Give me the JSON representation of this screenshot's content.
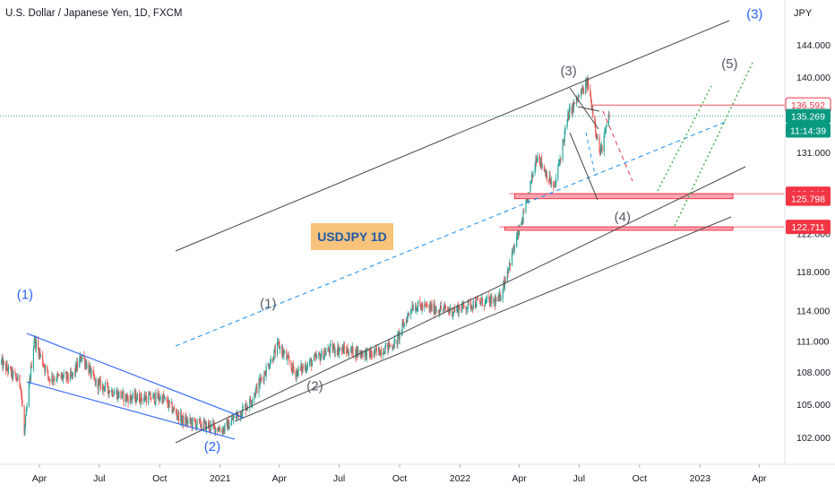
{
  "title": "U.S. Dollar / Japanese Yen, 1D, FXCM",
  "currency_label": "JPY",
  "chart_label": "USDJPY  1D",
  "colors": {
    "up": "#26a69a",
    "down": "#ef5350",
    "blue_annot": "#2962ff",
    "red_zone": "#f23645",
    "red_zone_fill": "#f7a4b1",
    "green_tag": "#089981",
    "label_bg": "#f7c27a",
    "channel": "#4a4a4a",
    "dotted_green": "#4caf50",
    "dashed_blue": "#2196f3"
  },
  "price_tags": [
    {
      "label": "136.592",
      "price": 136.592,
      "style": "outline-red"
    },
    {
      "label": "135.269",
      "price": 135.269,
      "style": "green"
    },
    {
      "label": "11:14:39",
      "price": 133.6,
      "style": "green"
    },
    {
      "label": "126.346",
      "price": 126.346,
      "style": "red"
    },
    {
      "label": "125.798",
      "price": 125.798,
      "style": "red"
    },
    {
      "label": "122.711",
      "price": 122.711,
      "style": "red"
    }
  ],
  "wave_labels": [
    {
      "text": "(1)",
      "color": "blue",
      "x": "2020-03-10",
      "y": 115.2
    },
    {
      "text": "(2)",
      "color": "blue",
      "x": "2020-12-20",
      "y": 100.8
    },
    {
      "text": "(1)",
      "color": "gray",
      "x": "2021-03-15",
      "y": 114.3
    },
    {
      "text": "(2)",
      "color": "gray",
      "x": "2021-05-25",
      "y": 106.3
    },
    {
      "text": "(3)",
      "color": "gray",
      "x": "2022-06-15",
      "y": 140.2
    },
    {
      "text": "(4)",
      "color": "gray",
      "x": "2022-09-05",
      "y": 123.3
    },
    {
      "text": "(5)",
      "color": "gray",
      "x": "2023-02-15",
      "y": 141.1
    },
    {
      "text": "(3)",
      "color": "blue",
      "x": "2023-03-25",
      "y": 147.4
    }
  ],
  "chart_data": {
    "type": "candlestick",
    "title": "U.S. Dollar / Japanese Yen, 1D, FXCM",
    "x_axis_ticks": [
      "Apr",
      "Jul",
      "Oct",
      "2021",
      "Apr",
      "Jul",
      "Oct",
      "2022",
      "Apr",
      "Jul",
      "Oct",
      "2023",
      "Apr"
    ],
    "y_axis_ticks": [
      "102.000",
      "105.000",
      "108.000",
      "111.000",
      "114.000",
      "118.000",
      "122.000",
      "126.000",
      "131.000",
      "135.000",
      "140.000",
      "144.000"
    ],
    "x_range": [
      "2020-02-01",
      "2023-05-10"
    ],
    "y_range": [
      99.6,
      149.8
    ],
    "y_scale": "log",
    "last_price": 135.269,
    "price_path": [
      {
        "date": "2020-02-01",
        "price": 109.0
      },
      {
        "date": "2020-03-03",
        "price": 107.0
      },
      {
        "date": "2020-03-09",
        "price": 102.3
      },
      {
        "date": "2020-03-24",
        "price": 111.2
      },
      {
        "date": "2020-04-15",
        "price": 107.5
      },
      {
        "date": "2020-05-20",
        "price": 107.5
      },
      {
        "date": "2020-06-05",
        "price": 109.6
      },
      {
        "date": "2020-06-25",
        "price": 107.0
      },
      {
        "date": "2020-08-10",
        "price": 105.6
      },
      {
        "date": "2020-10-05",
        "price": 105.6
      },
      {
        "date": "2020-11-05",
        "price": 103.5
      },
      {
        "date": "2021-01-06",
        "price": 102.7
      },
      {
        "date": "2021-02-15",
        "price": 105.2
      },
      {
        "date": "2021-03-31",
        "price": 110.6
      },
      {
        "date": "2021-04-25",
        "price": 107.9
      },
      {
        "date": "2021-06-20",
        "price": 110.3
      },
      {
        "date": "2021-08-20",
        "price": 109.7
      },
      {
        "date": "2021-09-25",
        "price": 110.8
      },
      {
        "date": "2021-10-20",
        "price": 114.5
      },
      {
        "date": "2021-12-20",
        "price": 114.0
      },
      {
        "date": "2022-01-25",
        "price": 114.8
      },
      {
        "date": "2022-03-01",
        "price": 115.0
      },
      {
        "date": "2022-04-10",
        "price": 124.5
      },
      {
        "date": "2022-04-28",
        "price": 130.8
      },
      {
        "date": "2022-05-24",
        "price": 126.8
      },
      {
        "date": "2022-06-15",
        "price": 135.5
      },
      {
        "date": "2022-07-14",
        "price": 139.3
      },
      {
        "date": "2022-08-02",
        "price": 130.8
      },
      {
        "date": "2022-08-16",
        "price": 135.27
      }
    ],
    "horizontal_zones": [
      {
        "top": 126.346,
        "bottom": 125.798,
        "start": "2022-03-25",
        "end": "2023-02-20"
      },
      {
        "top": 122.711,
        "bottom": 122.35,
        "start": "2022-03-10",
        "end": "2023-02-20"
      }
    ]
  }
}
